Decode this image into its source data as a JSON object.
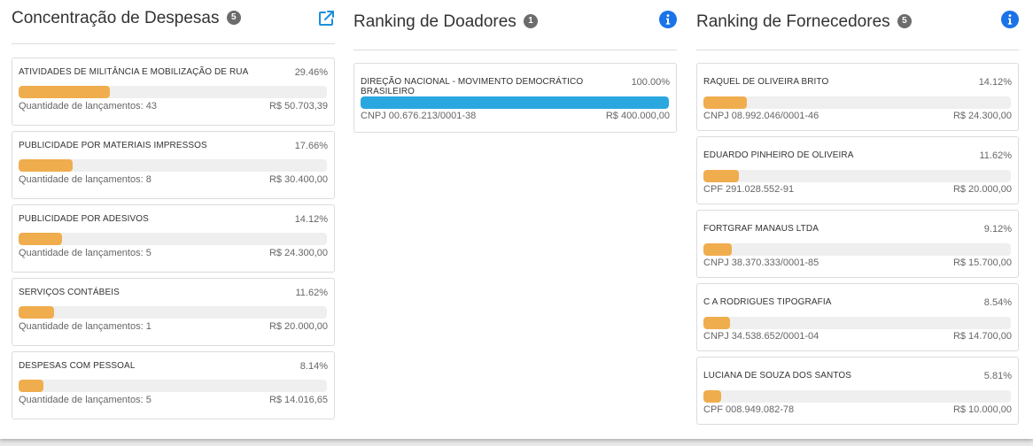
{
  "colors": {
    "bar_orange": "#f0ad4e",
    "bar_blue": "#2ba7e0",
    "info_blue": "#1a73e8",
    "link_blue": "#1a8fdd"
  },
  "despesas": {
    "title": "Concentração de Despesas",
    "count": "5",
    "icon": "external-link-icon",
    "items": [
      {
        "name": "ATIVIDADES DE MILITÂNCIA E MOBILIZAÇÃO DE RUA",
        "pct": "29.46%",
        "fill": 0.2946,
        "qty": "Quantidade de lançamentos: 43",
        "amount": "R$ 50.703,39"
      },
      {
        "name": "PUBLICIDADE POR MATERIAIS IMPRESSOS",
        "pct": "17.66%",
        "fill": 0.1766,
        "qty": "Quantidade de lançamentos: 8",
        "amount": "R$ 30.400,00"
      },
      {
        "name": "PUBLICIDADE POR ADESIVOS",
        "pct": "14.12%",
        "fill": 0.1412,
        "qty": "Quantidade de lançamentos: 5",
        "amount": "R$ 24.300,00"
      },
      {
        "name": "SERVIÇOS CONTÁBEIS",
        "pct": "11.62%",
        "fill": 0.1162,
        "qty": "Quantidade de lançamentos: 1",
        "amount": "R$ 20.000,00"
      },
      {
        "name": "DESPESAS COM PESSOAL",
        "pct": "8.14%",
        "fill": 0.0814,
        "qty": "Quantidade de lançamentos: 5",
        "amount": "R$ 14.016,65"
      }
    ]
  },
  "doadores": {
    "title": "Ranking de Doadores",
    "count": "1",
    "icon": "info-icon",
    "items": [
      {
        "name": "DIREÇÃO NACIONAL - MOVIMENTO DEMOCRÁTICO BRASILEIRO",
        "pct": "100.00%",
        "fill": 1.0,
        "doc": "CNPJ 00.676.213/0001-38",
        "amount": "R$ 400.000,00"
      }
    ]
  },
  "fornecedores": {
    "title": "Ranking de Fornecedores",
    "count": "5",
    "icon": "info-icon",
    "items": [
      {
        "name": "RAQUEL DE OLIVEIRA BRITO",
        "pct": "14.12%",
        "fill": 0.1412,
        "doc": "CNPJ 08.992.046/0001-46",
        "amount": "R$ 24.300,00"
      },
      {
        "name": "EDUARDO PINHEIRO DE OLIVEIRA",
        "pct": "11.62%",
        "fill": 0.1162,
        "doc": "CPF 291.028.552-91",
        "amount": "R$ 20.000,00"
      },
      {
        "name": "FORTGRAF MANAUS LTDA",
        "pct": "9.12%",
        "fill": 0.0912,
        "doc": "CNPJ 38.370.333/0001-85",
        "amount": "R$ 15.700,00"
      },
      {
        "name": "C A RODRIGUES TIPOGRAFIA",
        "pct": "8.54%",
        "fill": 0.0854,
        "doc": "CNPJ 34.538.652/0001-04",
        "amount": "R$ 14.700,00"
      },
      {
        "name": "LUCIANA DE SOUZA DOS SANTOS",
        "pct": "5.81%",
        "fill": 0.0581,
        "doc": "CPF 008.949.082-78",
        "amount": "R$ 10.000,00"
      }
    ]
  }
}
